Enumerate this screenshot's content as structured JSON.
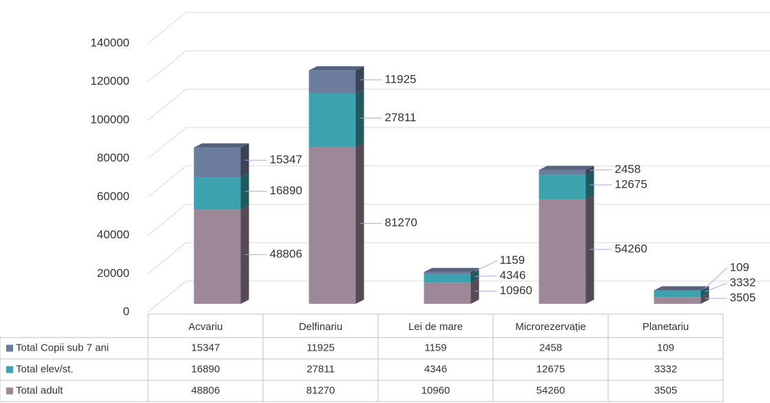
{
  "chart_data": {
    "type": "bar3d_stacked",
    "categories": [
      "Acvariu",
      "Delfinariu",
      "Lei de mare",
      "Microrezervație",
      "Planetariu"
    ],
    "series": [
      {
        "name": "Total adult",
        "color": "#9c8898",
        "values": [
          48806,
          81270,
          10960,
          54260,
          3505
        ]
      },
      {
        "name": "Total elev/st.",
        "color": "#3ba2ae",
        "values": [
          16890,
          27811,
          4346,
          12675,
          3332
        ]
      },
      {
        "name": "Total Copii sub 7 ani",
        "color": "#6b7c9c",
        "values": [
          15347,
          11925,
          1159,
          2458,
          109
        ]
      }
    ],
    "ylim": [
      0,
      140000
    ],
    "yticks": [
      0,
      20000,
      40000,
      60000,
      80000,
      100000,
      120000,
      140000
    ],
    "grid": true,
    "data_table": true
  }
}
